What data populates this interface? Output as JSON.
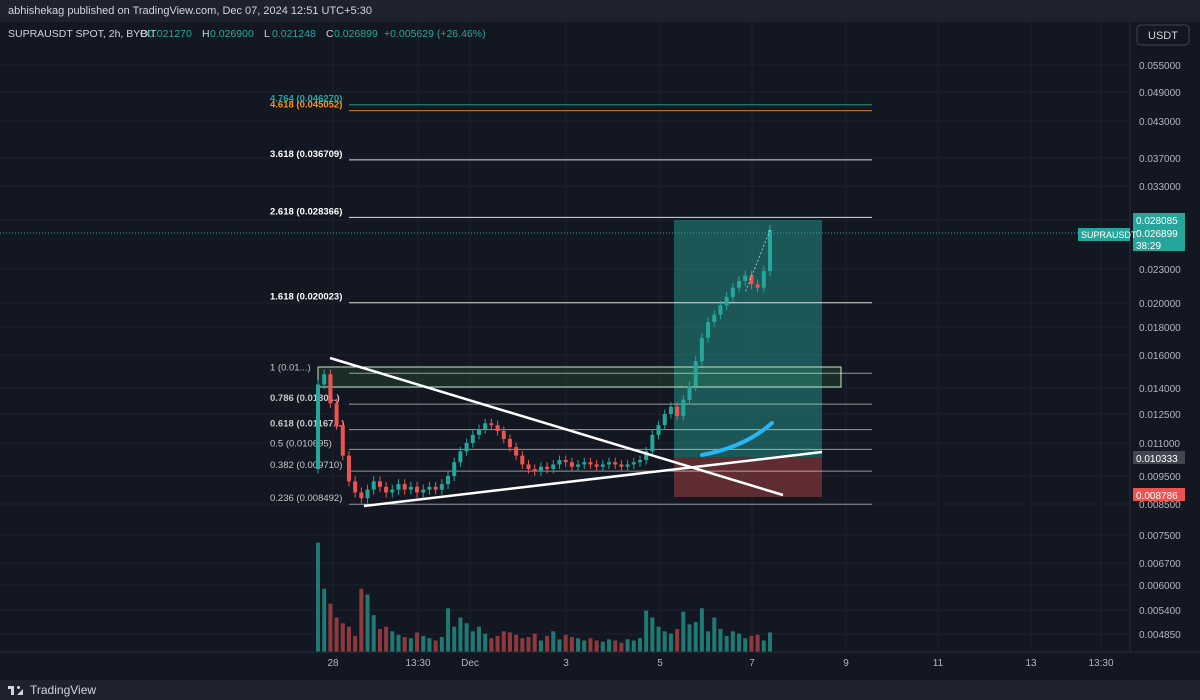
{
  "header": {
    "top_line": "abhishekag published on TradingView.com, Dec 07, 2024 12:51 UTC+5:30",
    "symbol_line": "SUPRAUSDT SPOT, 2h, BYBIT",
    "ohlc": [
      {
        "label": "O",
        "value": "0.021270"
      },
      {
        "label": "H",
        "value": "0.026900"
      },
      {
        "label": "L",
        "value": "0.021248"
      },
      {
        "label": "C",
        "value": "0.026899"
      }
    ],
    "change": "+0.005629 (+26.46%)"
  },
  "currency_button": "USDT",
  "footer": {
    "brand": "TradingView"
  },
  "colors": {
    "bg": "#131722",
    "up": "#26a69a",
    "down": "#ef5350",
    "up_vol": "#1e7a72",
    "down_vol": "#8e3a3c",
    "grid": "#1c2030",
    "text": "#b2b5be",
    "fib_orange": "#f7931a",
    "fib_teal": "#26a69a",
    "trend_line": "#ffffff",
    "curve": "#29b6f6"
  },
  "chart_data": {
    "type": "candlestick",
    "ylabels": [
      "0.055000",
      "0.049000",
      "0.043000",
      "0.037000",
      "0.033000",
      "0.028000",
      "0.023000",
      "0.020000",
      "0.018000",
      "0.016000",
      "0.014000",
      "0.012500",
      "0.011000",
      "0.009500",
      "0.008500",
      "0.007500",
      "0.006700",
      "0.006000",
      "0.005400",
      "0.004850"
    ],
    "xlabels": [
      "28",
      "13:30",
      "Dec",
      "3",
      "5",
      "7",
      "9",
      "11",
      "13",
      "13:30"
    ],
    "price_tags": [
      {
        "label": "0.028085",
        "value": 0.028085,
        "color": "#26a69a"
      },
      {
        "label": "0.026899",
        "value": 0.026899,
        "color": "#26a69a"
      },
      {
        "label": "38:29",
        "value": 0.0255,
        "color": "#26a69a"
      },
      {
        "label": "0.010333",
        "value": 0.010333,
        "color": "#434651"
      },
      {
        "label": "0.008786",
        "value": 0.008786,
        "color": "#ef5350"
      }
    ],
    "symbol_tag": "SUPRAUSDT",
    "fib_levels": [
      {
        "label": "4.764 (0.046270)",
        "value": 0.04627
      },
      {
        "label": "4.618 (0.045052)",
        "value": 0.045052
      },
      {
        "label": "3.618 (0.036709)",
        "value": 0.036709
      },
      {
        "label": "2.618 (0.028366)",
        "value": 0.028366
      },
      {
        "label": "1.618 (0.020023)",
        "value": 0.020023
      },
      {
        "label": "1 (0.01...)",
        "value": 0.01486
      },
      {
        "label": "0.786 (0.0130...)",
        "value": 0.01305
      },
      {
        "label": "0.618 (0.01167...)",
        "value": 0.01167
      },
      {
        "label": "0.5 (0.010695)",
        "value": 0.010695
      },
      {
        "label": "0.382 (0.009710)",
        "value": 0.00971
      },
      {
        "label": "0.236 (0.008492)",
        "value": 0.008492
      }
    ],
    "candles_close": [
      0.0142,
      0.0148,
      0.0131,
      0.0119,
      0.0104,
      0.0093,
      0.0089,
      0.0087,
      0.009,
      0.0093,
      0.0091,
      0.0089,
      0.009,
      0.0092,
      0.009,
      0.0091,
      0.0089,
      0.009,
      0.0091,
      0.009,
      0.0092,
      0.0095,
      0.0101,
      0.0106,
      0.011,
      0.0114,
      0.0117,
      0.012,
      0.0119,
      0.0116,
      0.0112,
      0.0108,
      0.0104,
      0.01,
      0.0098,
      0.0097,
      0.0099,
      0.0098,
      0.01,
      0.0102,
      0.0101,
      0.0099,
      0.01,
      0.0101,
      0.01,
      0.0099,
      0.01,
      0.0101,
      0.01,
      0.0099,
      0.01,
      0.0101,
      0.0102,
      0.0106,
      0.0114,
      0.0119,
      0.0125,
      0.0129,
      0.0124,
      0.0133,
      0.0141,
      0.0156,
      0.0172,
      0.0184,
      0.019,
      0.0198,
      0.0205,
      0.0213,
      0.0219,
      0.0224,
      0.0216,
      0.0213,
      0.0228,
      0.0269
    ],
    "volumes": [
      0.95,
      0.55,
      0.42,
      0.3,
      0.25,
      0.22,
      0.14,
      0.55,
      0.5,
      0.32,
      0.2,
      0.22,
      0.18,
      0.15,
      0.13,
      0.12,
      0.17,
      0.14,
      0.12,
      0.1,
      0.13,
      0.38,
      0.22,
      0.3,
      0.25,
      0.18,
      0.22,
      0.16,
      0.12,
      0.14,
      0.18,
      0.17,
      0.15,
      0.12,
      0.13,
      0.16,
      0.1,
      0.14,
      0.18,
      0.11,
      0.15,
      0.13,
      0.12,
      0.1,
      0.12,
      0.1,
      0.09,
      0.11,
      0.1,
      0.08,
      0.11,
      0.1,
      0.12,
      0.36,
      0.3,
      0.22,
      0.18,
      0.16,
      0.2,
      0.35,
      0.24,
      0.26,
      0.38,
      0.18,
      0.3,
      0.2,
      0.14,
      0.18,
      0.16,
      0.12,
      0.14,
      0.15,
      0.1,
      0.17
    ]
  }
}
